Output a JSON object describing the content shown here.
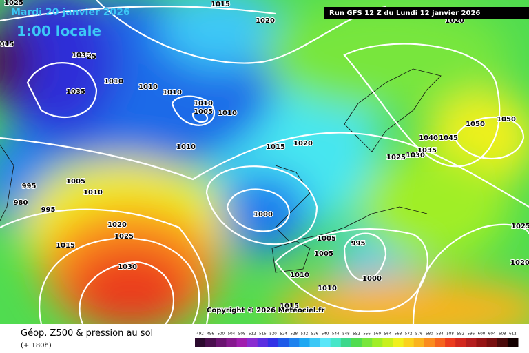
{
  "header": {
    "date": "Mardi 20 janvier 2026",
    "time": "1:00 locale",
    "run": "Run GFS 12 Z du Lundi 12 janvier 2026"
  },
  "copyright": "Copyright © 2026 Meteociel.fr",
  "footer": {
    "title": "Géop. Z500 & pression au sol",
    "subtitle": "(+ 180h)"
  },
  "legend": {
    "labels": [
      "492",
      "496",
      "500",
      "504",
      "508",
      "512",
      "516",
      "520",
      "524",
      "528",
      "532",
      "536",
      "540",
      "544",
      "548",
      "552",
      "556",
      "560",
      "564",
      "568",
      "572",
      "576",
      "580",
      "584",
      "588",
      "592",
      "596",
      "600",
      "604",
      "608",
      "612"
    ],
    "colors": [
      "#2b0a2e",
      "#4a0f4e",
      "#6a1470",
      "#86198e",
      "#a01eae",
      "#8a2dd0",
      "#5b2fe0",
      "#3232e6",
      "#1e5ae8",
      "#1e82ee",
      "#1ea8f2",
      "#3cc8f6",
      "#5ae6f8",
      "#46e6c8",
      "#3cd88c",
      "#50dc50",
      "#78e63c",
      "#a0ee28",
      "#c8f01e",
      "#f0f01e",
      "#fad21e",
      "#fab41e",
      "#fa8c1e",
      "#f5641e",
      "#eb3c1e",
      "#d2281e",
      "#b41e1e",
      "#961414",
      "#780f0f",
      "#4b0a0a",
      "#140000"
    ]
  },
  "pressure_labels": [
    "1015",
    "1020",
    "1025",
    "015",
    "1030",
    "25",
    "1035",
    "1010",
    "1010",
    "1010",
    "1010",
    "1005",
    "1010",
    "1010",
    "1015",
    "1020",
    "1025",
    "1030",
    "1035",
    "1040",
    "1045",
    "1050",
    "1050",
    "995",
    "980",
    "995",
    "1005",
    "1010",
    "1020",
    "1025",
    "1015",
    "1030",
    "1000",
    "1005",
    "995",
    "1005",
    "1010",
    "1010",
    "1000",
    "1015",
    "1025",
    "1020",
    "1020"
  ]
}
